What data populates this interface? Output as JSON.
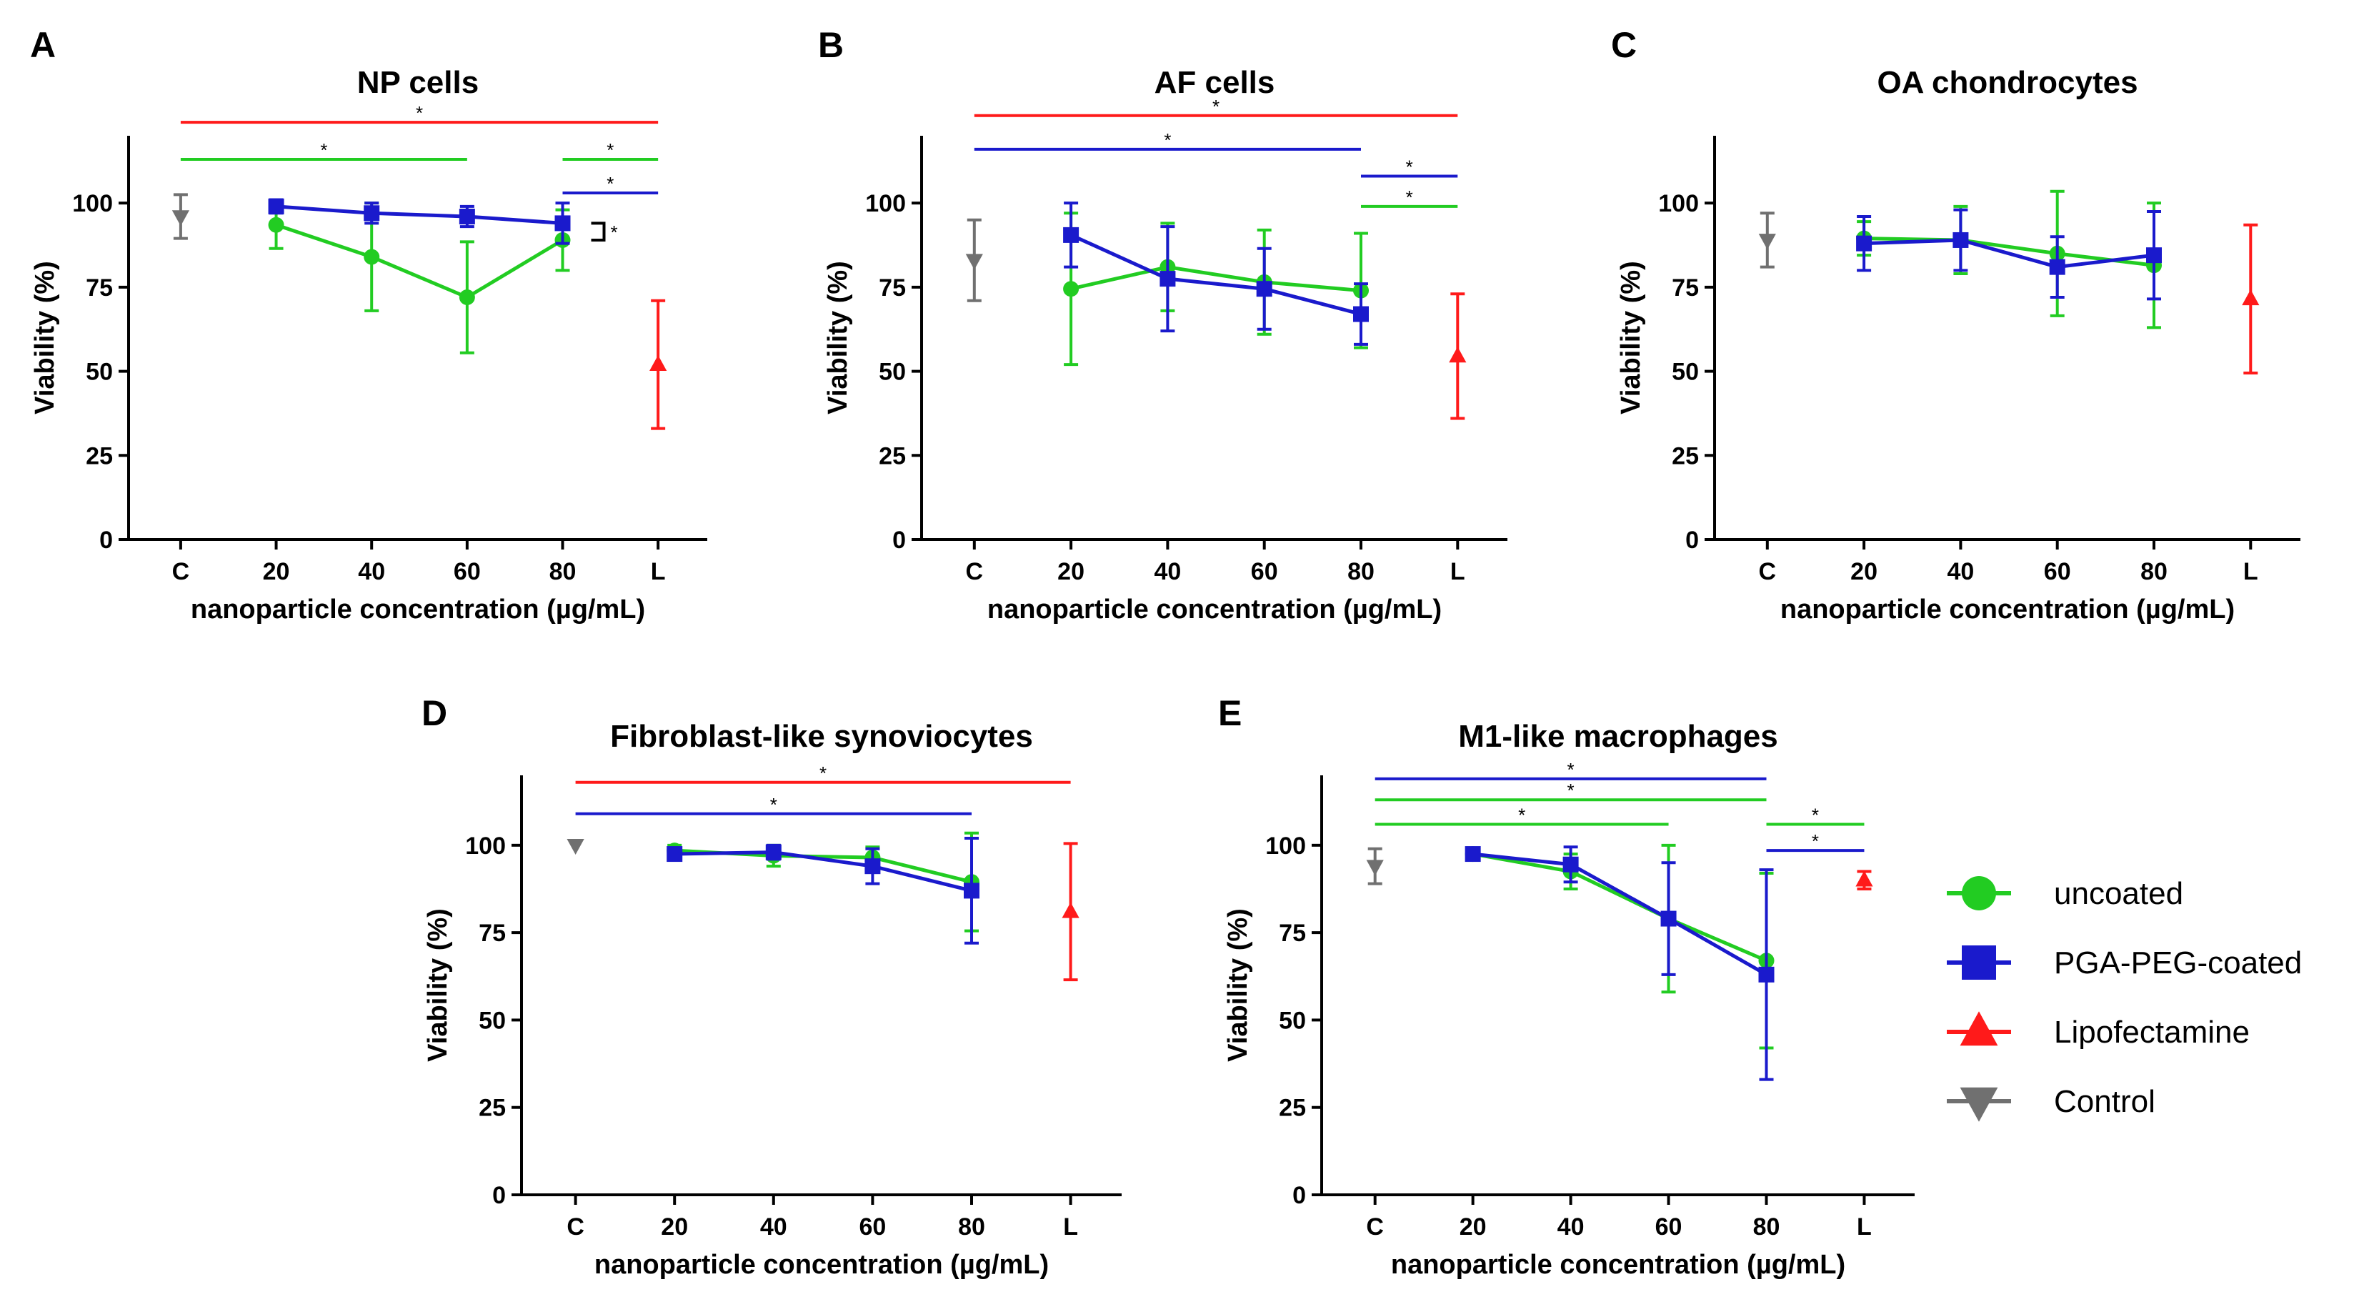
{
  "chart_data": [
    {
      "type": "line",
      "panel": "A",
      "title": "NP cells",
      "xlabel": "nanoparticle concentration (µg/mL)",
      "ylabel": "Viability (%)",
      "categories": [
        "C",
        "20",
        "40",
        "60",
        "80",
        "L"
      ],
      "ylim": [
        0,
        120
      ],
      "yticks": [
        0,
        25,
        50,
        75,
        100
      ],
      "series": [
        {
          "name": "uncoated",
          "color": "#22cc22",
          "marker": "circle",
          "x": [
            "20",
            "40",
            "60",
            "80"
          ],
          "values": [
            93.5,
            84,
            72,
            89
          ],
          "errors": [
            7,
            16,
            16.5,
            9
          ]
        },
        {
          "name": "PGA-PEG-coated",
          "color": "#1a1acc",
          "marker": "square",
          "x": [
            "20",
            "40",
            "60",
            "80"
          ],
          "values": [
            99,
            97,
            96,
            94
          ],
          "errors": [
            2,
            3,
            3,
            6
          ]
        },
        {
          "name": "Lipofectamine",
          "color": "#ff1a1a",
          "marker": "triangle-up",
          "x": [
            "L"
          ],
          "values": [
            52
          ],
          "errors": [
            19
          ]
        },
        {
          "name": "Control",
          "color": "#707070",
          "marker": "triangle-down",
          "x": [
            "C"
          ],
          "values": [
            96
          ],
          "errors": [
            6.5
          ]
        }
      ],
      "significance": [
        {
          "from": "C",
          "to": "L",
          "y": 124,
          "color": "#ff1a1a",
          "label": "*"
        },
        {
          "from": "C",
          "to": "60",
          "y": 113,
          "color": "#22cc22",
          "label": "*"
        },
        {
          "from": "80",
          "to": "L",
          "y": 113,
          "color": "#22cc22",
          "label": "*"
        },
        {
          "from": "80",
          "to": "L",
          "y": 103,
          "color": "#1a1acc",
          "label": "*"
        }
      ],
      "bracket": {
        "at": "80",
        "y_top": 94,
        "y_bottom": 89,
        "label": "*"
      }
    },
    {
      "type": "line",
      "panel": "B",
      "title": "AF cells",
      "xlabel": "nanoparticle concentration (µg/mL)",
      "ylabel": "Viability (%)",
      "categories": [
        "C",
        "20",
        "40",
        "60",
        "80",
        "L"
      ],
      "ylim": [
        0,
        120
      ],
      "yticks": [
        0,
        25,
        50,
        75,
        100
      ],
      "series": [
        {
          "name": "uncoated",
          "color": "#22cc22",
          "marker": "circle",
          "x": [
            "20",
            "40",
            "60",
            "80"
          ],
          "values": [
            74.5,
            81,
            76.5,
            74
          ],
          "errors": [
            22.5,
            13,
            15.5,
            17
          ]
        },
        {
          "name": "PGA-PEG-coated",
          "color": "#1a1acc",
          "marker": "square",
          "x": [
            "20",
            "40",
            "60",
            "80"
          ],
          "values": [
            90.5,
            77.5,
            74.5,
            67
          ],
          "errors": [
            9.5,
            15.5,
            12,
            9
          ]
        },
        {
          "name": "Lipofectamine",
          "color": "#ff1a1a",
          "marker": "triangle-up",
          "x": [
            "L"
          ],
          "values": [
            54.5
          ],
          "errors": [
            18.5
          ]
        },
        {
          "name": "Control",
          "color": "#707070",
          "marker": "triangle-down",
          "x": [
            "C"
          ],
          "values": [
            83
          ],
          "errors": [
            12
          ]
        }
      ],
      "significance": [
        {
          "from": "C",
          "to": "L",
          "y": 126,
          "color": "#ff1a1a",
          "label": "*"
        },
        {
          "from": "C",
          "to": "80",
          "y": 116,
          "color": "#1a1acc",
          "label": "*"
        },
        {
          "from": "80",
          "to": "L",
          "y": 108,
          "color": "#1a1acc",
          "label": "*"
        },
        {
          "from": "80",
          "to": "L",
          "y": 99,
          "color": "#22cc22",
          "label": "*"
        }
      ]
    },
    {
      "type": "line",
      "panel": "C",
      "title": "OA chondrocytes",
      "xlabel": "nanoparticle concentration (µg/mL)",
      "ylabel": "Viability (%)",
      "categories": [
        "C",
        "20",
        "40",
        "60",
        "80",
        "L"
      ],
      "ylim": [
        0,
        120
      ],
      "yticks": [
        0,
        25,
        50,
        75,
        100
      ],
      "series": [
        {
          "name": "uncoated",
          "color": "#22cc22",
          "marker": "circle",
          "x": [
            "20",
            "40",
            "60",
            "80"
          ],
          "values": [
            89.5,
            89,
            85,
            81.5
          ],
          "errors": [
            5,
            10,
            18.5,
            18.5
          ]
        },
        {
          "name": "PGA-PEG-coated",
          "color": "#1a1acc",
          "marker": "square",
          "x": [
            "20",
            "40",
            "60",
            "80"
          ],
          "values": [
            88,
            89,
            81,
            84.5
          ],
          "errors": [
            8,
            9,
            9,
            13
          ]
        },
        {
          "name": "Lipofectamine",
          "color": "#ff1a1a",
          "marker": "triangle-up",
          "x": [
            "L"
          ],
          "values": [
            71.5
          ],
          "errors": [
            22
          ]
        },
        {
          "name": "Control",
          "color": "#707070",
          "marker": "triangle-down",
          "x": [
            "C"
          ],
          "values": [
            89
          ],
          "errors": [
            8
          ]
        }
      ],
      "significance": []
    },
    {
      "type": "line",
      "panel": "D",
      "title": "Fibroblast-like synoviocytes",
      "xlabel": "nanoparticle concentration (µg/mL)",
      "ylabel": "Viability (%)",
      "categories": [
        "C",
        "20",
        "40",
        "60",
        "80",
        "L"
      ],
      "ylim": [
        0,
        120
      ],
      "yticks": [
        0,
        25,
        50,
        75,
        100
      ],
      "series": [
        {
          "name": "uncoated",
          "color": "#22cc22",
          "marker": "circle",
          "x": [
            "20",
            "40",
            "60",
            "80"
          ],
          "values": [
            98.5,
            97,
            96.5,
            89.5
          ],
          "errors": [
            1.5,
            3,
            3,
            14
          ]
        },
        {
          "name": "PGA-PEG-coated",
          "color": "#1a1acc",
          "marker": "square",
          "x": [
            "20",
            "40",
            "60",
            "80"
          ],
          "values": [
            97.5,
            98,
            94,
            87
          ],
          "errors": [
            1.5,
            2,
            5,
            15
          ]
        },
        {
          "name": "Lipofectamine",
          "color": "#ff1a1a",
          "marker": "triangle-up",
          "x": [
            "L"
          ],
          "values": [
            81
          ],
          "errors": [
            19.5
          ]
        },
        {
          "name": "Control",
          "color": "#707070",
          "marker": "triangle-down",
          "x": [
            "C"
          ],
          "values": [
            100
          ],
          "errors": [
            0
          ]
        }
      ],
      "significance": [
        {
          "from": "C",
          "to": "L",
          "y": 118,
          "color": "#ff1a1a",
          "label": "*"
        },
        {
          "from": "C",
          "to": "80",
          "y": 109,
          "color": "#1a1acc",
          "label": "*"
        }
      ]
    },
    {
      "type": "line",
      "panel": "E",
      "title": "M1-like macrophages",
      "xlabel": "nanoparticle concentration (µg/mL)",
      "ylabel": "Viability (%)",
      "categories": [
        "C",
        "20",
        "40",
        "60",
        "80",
        "L"
      ],
      "ylim": [
        0,
        120
      ],
      "yticks": [
        0,
        25,
        50,
        75,
        100
      ],
      "series": [
        {
          "name": "uncoated",
          "color": "#22cc22",
          "marker": "circle",
          "x": [
            "20",
            "40",
            "60",
            "80"
          ],
          "values": [
            97.5,
            92.5,
            79,
            67
          ],
          "errors": [
            1,
            5,
            21,
            25
          ]
        },
        {
          "name": "PGA-PEG-coated",
          "color": "#1a1acc",
          "marker": "square",
          "x": [
            "20",
            "40",
            "60",
            "80"
          ],
          "values": [
            97.5,
            94.5,
            79,
            63
          ],
          "errors": [
            1,
            5,
            16,
            30
          ]
        },
        {
          "name": "Lipofectamine",
          "color": "#ff1a1a",
          "marker": "triangle-up",
          "x": [
            "L"
          ],
          "values": [
            90
          ],
          "errors": [
            2.5
          ]
        },
        {
          "name": "Control",
          "color": "#707070",
          "marker": "triangle-down",
          "x": [
            "C"
          ],
          "values": [
            94
          ],
          "errors": [
            5
          ]
        }
      ],
      "significance": [
        {
          "from": "C",
          "to": "80",
          "y": 119,
          "color": "#1a1acc",
          "label": "*"
        },
        {
          "from": "C",
          "to": "80",
          "y": 113,
          "color": "#22cc22",
          "label": "*"
        },
        {
          "from": "C",
          "to": "60",
          "y": 106,
          "color": "#22cc22",
          "label": "*"
        },
        {
          "from": "80",
          "to": "L",
          "y": 106,
          "color": "#22cc22",
          "label": "*"
        },
        {
          "from": "80",
          "to": "L",
          "y": 98.5,
          "color": "#1a1acc",
          "label": "*"
        }
      ]
    }
  ],
  "legend": {
    "placement": "right",
    "items": [
      {
        "label": "uncoated",
        "color": "#22cc22",
        "marker": "circle"
      },
      {
        "label": "PGA-PEG-coated",
        "color": "#1a1acc",
        "marker": "square"
      },
      {
        "label": "Lipofectamine",
        "color": "#ff1a1a",
        "marker": "triangle-up"
      },
      {
        "label": "Control",
        "color": "#707070",
        "marker": "triangle-down"
      }
    ]
  }
}
